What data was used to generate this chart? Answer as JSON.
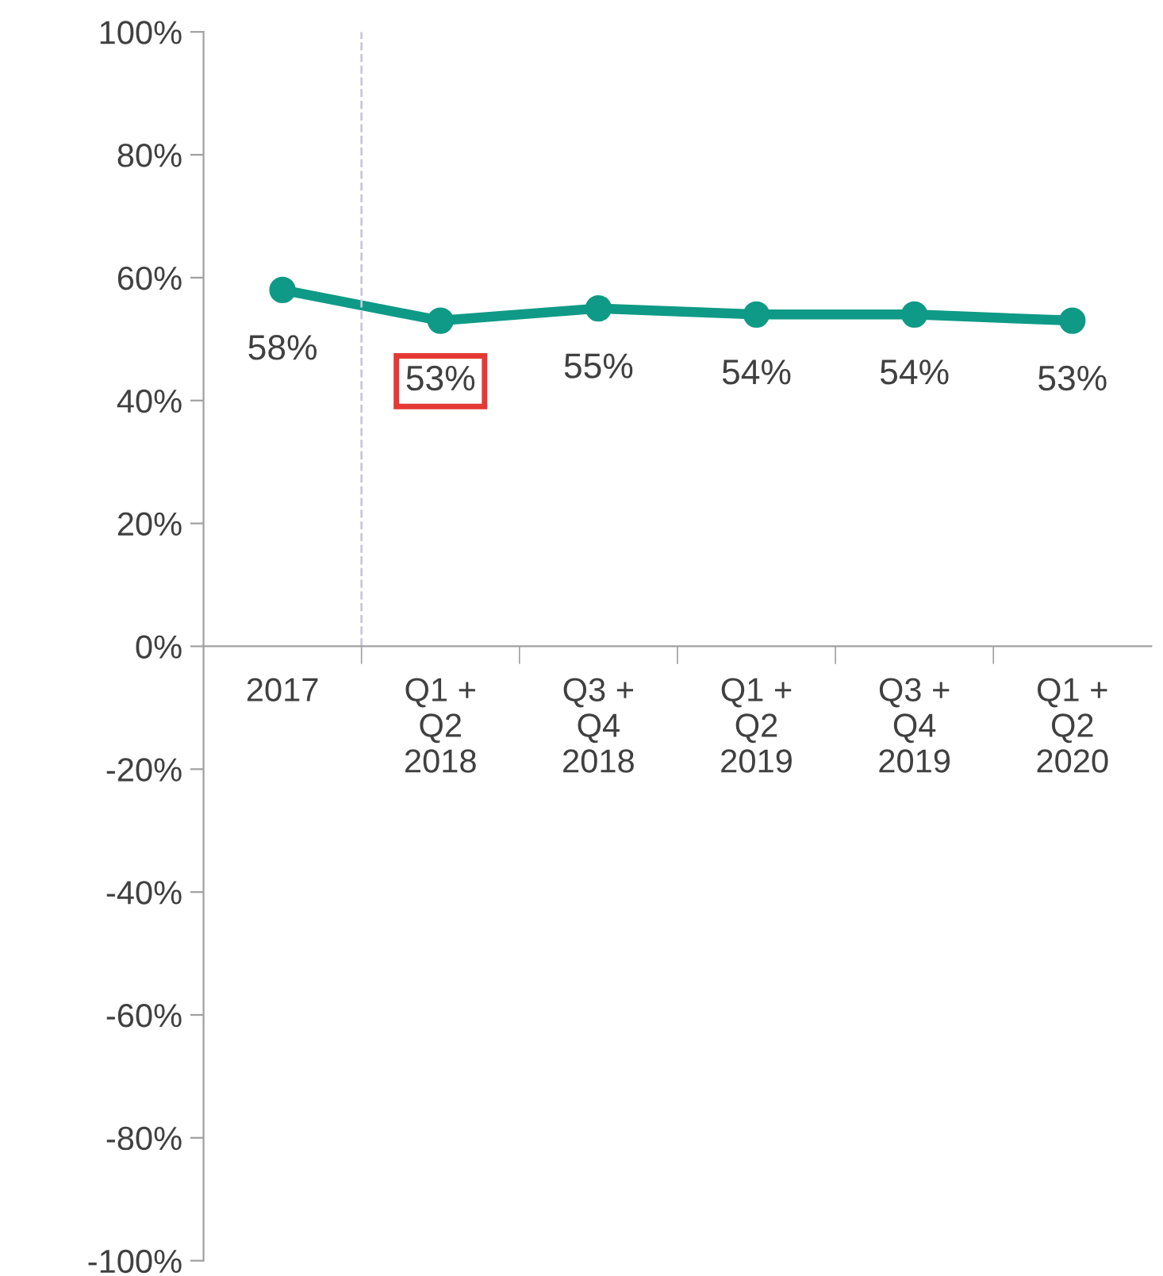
{
  "chart_data": {
    "type": "line",
    "categories": [
      "2017",
      "Q1 +\nQ2\n2018",
      "Q3 +\nQ4\n2018",
      "Q1 +\nQ2\n2019",
      "Q3 +\nQ4\n2019",
      "Q1 +\nQ2\n2020"
    ],
    "series": [
      {
        "color": "#0e9a86",
        "values": [
          58,
          53,
          55,
          54,
          54,
          53
        ],
        "value_labels": [
          "58%",
          "53%",
          "55%",
          "54%",
          "54%",
          "53%"
        ]
      }
    ],
    "ylim": [
      -100,
      100
    ],
    "yticks": [
      {
        "value": -100,
        "label": "-100%"
      },
      {
        "value": -80,
        "label": "-80%"
      },
      {
        "value": -60,
        "label": "-60%"
      },
      {
        "value": -40,
        "label": "-40%"
      },
      {
        "value": -20,
        "label": "-20%"
      },
      {
        "value": 0,
        "label": "0%"
      },
      {
        "value": 20,
        "label": "20%"
      },
      {
        "value": 40,
        "label": "40%"
      },
      {
        "value": 60,
        "label": "60%"
      },
      {
        "value": 80,
        "label": "80%"
      },
      {
        "value": 100,
        "label": "100%"
      }
    ],
    "marker": "circle",
    "line_style": "solid",
    "grid": false,
    "legend": false
  }
}
